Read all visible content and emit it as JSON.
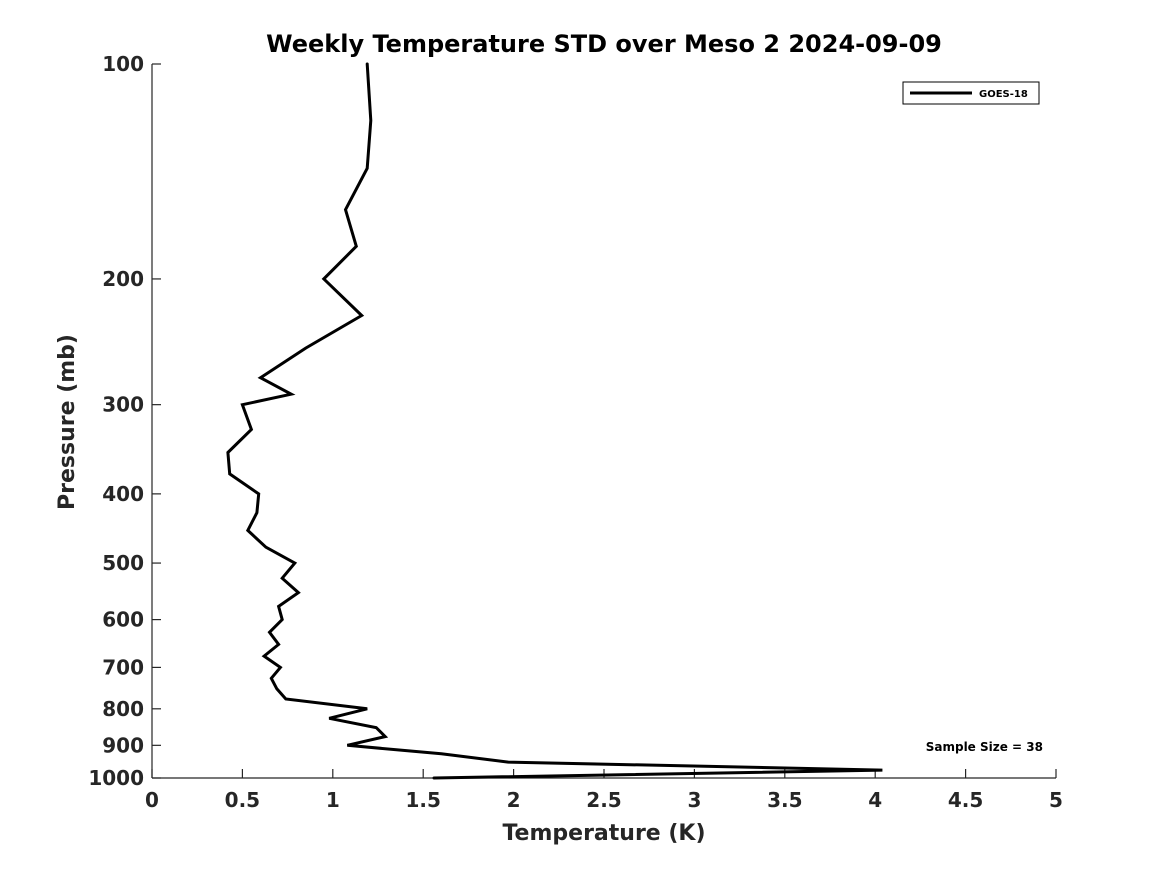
{
  "chart_data": {
    "type": "line",
    "title": "Weekly Temperature STD over Meso 2 2024-09-09",
    "xlabel": "Temperature (K)",
    "ylabel": "Pressure (mb)",
    "xlim": [
      0,
      5
    ],
    "ylim": [
      100,
      1000
    ],
    "yscale": "log",
    "yreversed": true,
    "xticks": [
      0,
      0.5,
      1,
      1.5,
      2,
      2.5,
      3,
      3.5,
      4,
      4.5,
      5
    ],
    "xtick_labels": [
      "0",
      "0.5",
      "1",
      "1.5",
      "2",
      "2.5",
      "3",
      "3.5",
      "4",
      "4.5",
      "5"
    ],
    "yticks": [
      100,
      200,
      300,
      400,
      500,
      600,
      700,
      800,
      900,
      1000
    ],
    "ytick_labels": [
      "100",
      "200",
      "300",
      "400",
      "500",
      "600",
      "700",
      "800",
      "900",
      "1000"
    ],
    "grid": false,
    "legend": {
      "position": "top-right"
    },
    "annotation": "Sample Size = 38",
    "series": [
      {
        "name": "GOES-18",
        "color": "#000000",
        "points": [
          {
            "t": 1.19,
            "p": 100
          },
          {
            "t": 1.21,
            "p": 120
          },
          {
            "t": 1.19,
            "p": 140
          },
          {
            "t": 1.07,
            "p": 160
          },
          {
            "t": 1.13,
            "p": 180
          },
          {
            "t": 0.95,
            "p": 200
          },
          {
            "t": 1.16,
            "p": 225
          },
          {
            "t": 0.85,
            "p": 250
          },
          {
            "t": 0.6,
            "p": 275
          },
          {
            "t": 0.77,
            "p": 290
          },
          {
            "t": 0.5,
            "p": 300
          },
          {
            "t": 0.55,
            "p": 325
          },
          {
            "t": 0.42,
            "p": 350
          },
          {
            "t": 0.43,
            "p": 375
          },
          {
            "t": 0.59,
            "p": 400
          },
          {
            "t": 0.58,
            "p": 425
          },
          {
            "t": 0.53,
            "p": 450
          },
          {
            "t": 0.63,
            "p": 475
          },
          {
            "t": 0.79,
            "p": 500
          },
          {
            "t": 0.72,
            "p": 525
          },
          {
            "t": 0.81,
            "p": 550
          },
          {
            "t": 0.7,
            "p": 575
          },
          {
            "t": 0.72,
            "p": 600
          },
          {
            "t": 0.65,
            "p": 625
          },
          {
            "t": 0.7,
            "p": 650
          },
          {
            "t": 0.62,
            "p": 675
          },
          {
            "t": 0.71,
            "p": 700
          },
          {
            "t": 0.66,
            "p": 725
          },
          {
            "t": 0.69,
            "p": 750
          },
          {
            "t": 0.74,
            "p": 775
          },
          {
            "t": 1.19,
            "p": 800
          },
          {
            "t": 0.98,
            "p": 825
          },
          {
            "t": 1.24,
            "p": 850
          },
          {
            "t": 1.29,
            "p": 875
          },
          {
            "t": 1.08,
            "p": 900
          },
          {
            "t": 1.6,
            "p": 925
          },
          {
            "t": 1.97,
            "p": 950
          },
          {
            "t": 4.04,
            "p": 975
          },
          {
            "t": 1.56,
            "p": 1000
          }
        ]
      }
    ]
  }
}
